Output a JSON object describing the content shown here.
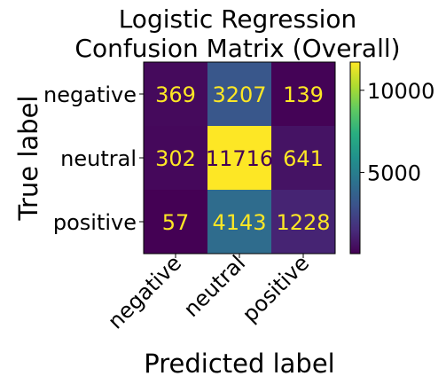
{
  "chart_data": {
    "type": "heatmap",
    "title_lines": [
      "Logistic Regression",
      "Confusion Matrix (Overall)"
    ],
    "xlabel": "Predicted label",
    "ylabel": "True label",
    "x_categories": [
      "negative",
      "neutral",
      "positive"
    ],
    "y_categories": [
      "negative",
      "neutral",
      "positive"
    ],
    "values": [
      [
        369,
        3207,
        139
      ],
      [
        302,
        11716,
        641
      ],
      [
        57,
        4143,
        1228
      ]
    ],
    "colorbar": {
      "colormap": "viridis",
      "min": 57,
      "max": 11716,
      "ticks": [
        5000,
        10000
      ]
    },
    "annotation_colors": {
      "on_dark": "#fde725",
      "on_light": "#440154"
    }
  }
}
